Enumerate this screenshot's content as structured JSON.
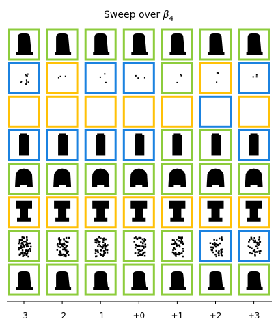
{
  "chart_data": {
    "type": "image_grid",
    "title_prefix": "Sweep over ",
    "title_symbol": "β",
    "title_subscript": "4",
    "columns": [
      "-3",
      "-2",
      "-1",
      "+0",
      "+1",
      "+2",
      "+3"
    ],
    "border_colors": {
      "G": "#8dcc3c",
      "B": "#1b82e0",
      "Y": "#ffc107"
    },
    "rows": [
      {
        "type": "bell",
        "borders": "GGGGGGG"
      },
      {
        "type": "sparse_dots",
        "borders": "BYBBGYB"
      },
      {
        "type": "blank",
        "borders": "YYYYYBY"
      },
      {
        "type": "bottle",
        "borders": "BBBBGGB"
      },
      {
        "type": "wide_bell",
        "borders": "GGGGGGG"
      },
      {
        "type": "column_top",
        "borders": "YYYYYYY"
      },
      {
        "type": "noisy_figure",
        "borders": "GGGGGBB"
      },
      {
        "type": "bell_low",
        "borders": "GGGGGGG"
      }
    ]
  }
}
